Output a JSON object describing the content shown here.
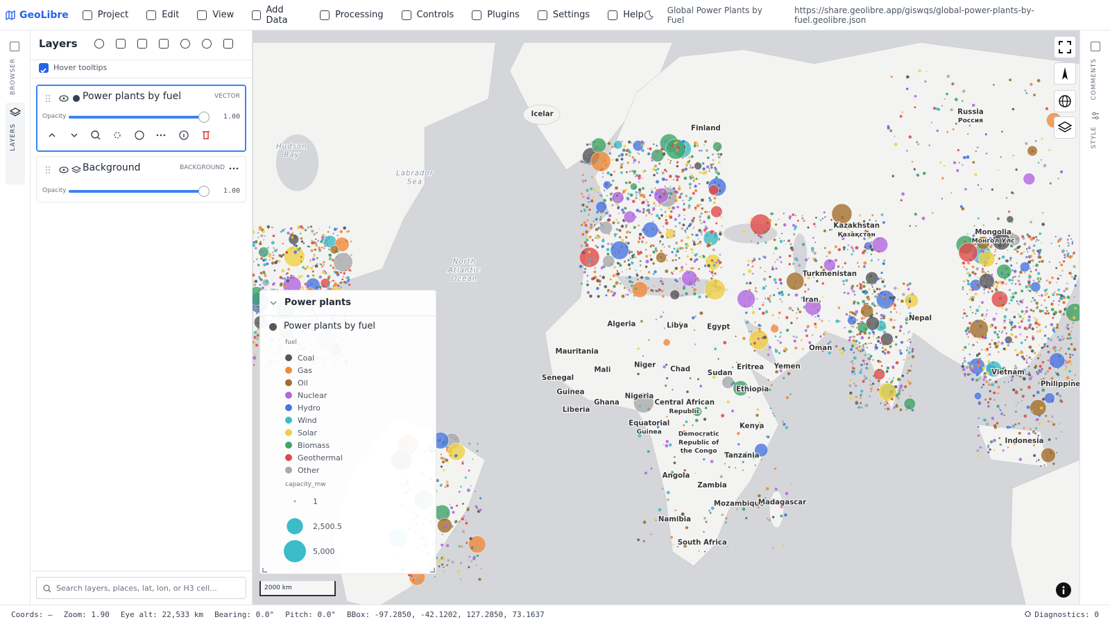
{
  "menubar": {
    "brand": "GeoLibre",
    "menus": [
      "Project",
      "Edit",
      "View",
      "Add Data",
      "Processing",
      "Controls",
      "Plugins",
      "Settings",
      "Help"
    ],
    "project_title": "Global Power Plants by Fuel",
    "url": "https://share.geolibre.app/giswqs/global-power-plants-by-fuel.geolibre.json"
  },
  "left_tabs": [
    "BROWSER",
    "LAYERS"
  ],
  "right_tabs": [
    "COMMENTS",
    "STYLE"
  ],
  "layers_panel": {
    "title": "Layers",
    "hover_tooltips": {
      "label": "Hover tooltips",
      "checked": true
    },
    "layers": [
      {
        "name": "Power plants by fuel",
        "kind": "VECTOR",
        "opacity_label": "Opacity",
        "opacity": {
          "value": 1,
          "label": "1.00"
        }
      },
      {
        "name": "Background",
        "kind": "BACKGROUND",
        "opacity_label": "Opacity",
        "opacity": {
          "value": 1,
          "label": "1.00"
        }
      }
    ],
    "search_placeholder": "Search layers, places, lat, lon, or H3 cell..."
  },
  "legend": {
    "title": "Power plants",
    "layer": "Power plants by fuel",
    "fuel_title": "fuel",
    "fuel": [
      {
        "name": "Coal",
        "color": "#55565b"
      },
      {
        "name": "Gas",
        "color": "#ef8a3c"
      },
      {
        "name": "Oil",
        "color": "#a26f2c"
      },
      {
        "name": "Nuclear",
        "color": "#b067e0"
      },
      {
        "name": "Hydro",
        "color": "#4a76e0"
      },
      {
        "name": "Wind",
        "color": "#3bbcc8"
      },
      {
        "name": "Solar",
        "color": "#f0cf45"
      },
      {
        "name": "Biomass",
        "color": "#3fa26a"
      },
      {
        "name": "Geothermal",
        "color": "#e04a4a"
      },
      {
        "name": "Other",
        "color": "#a8a9ad"
      }
    ],
    "size_title": "capacity_mw",
    "size_values": [
      1,
      2500.5,
      5000
    ],
    "size_labels": [
      "1",
      "2,500.5",
      "5,000"
    ],
    "size_color": "#3bbcc8"
  },
  "map": {
    "scale": "2000 km",
    "labels": [
      [
        "Hudson",
        "Bay"
      ],
      [
        "Labrador",
        "Sea"
      ],
      [
        "North",
        "Atlantic",
        "Ocean"
      ],
      [
        "Icelar"
      ],
      [
        "Finland"
      ],
      [
        "Russia",
        "Россия"
      ],
      [
        "Kazakhstan",
        "Қазақстан"
      ],
      [
        "Mongolia",
        "Монгол Улс"
      ],
      [
        "Turkmenistan"
      ],
      [
        "Iran"
      ],
      [
        "Algeria"
      ],
      [
        "Libya"
      ],
      [
        "Egypt"
      ],
      [
        "Mauritania"
      ],
      [
        "Mali"
      ],
      [
        "Niger"
      ],
      [
        "Chad"
      ],
      [
        "Sudan"
      ],
      [
        "Senegal"
      ],
      [
        "Guinea"
      ],
      [
        "Liberia"
      ],
      [
        "Ghana"
      ],
      [
        "Nigeria"
      ],
      [
        "Central African",
        "Republic"
      ],
      [
        "Equatorial",
        "Guinea"
      ],
      [
        "Eritrea"
      ],
      [
        "Yemen"
      ],
      [
        "Ethiopia"
      ],
      [
        "Kenya"
      ],
      [
        "Democratic",
        "Republic of",
        "the Congo"
      ],
      [
        "Tanzania"
      ],
      [
        "Angola"
      ],
      [
        "Zambia"
      ],
      [
        "Mozambique"
      ],
      [
        "Madagascar"
      ],
      [
        "Namibia"
      ],
      [
        "South Africa"
      ],
      [
        "Nepal"
      ],
      [
        "Oman"
      ],
      [
        "Indonesia"
      ],
      [
        "Philippine"
      ],
      [
        "Vietnam"
      ]
    ]
  },
  "status": {
    "coords": "Coords: —",
    "zoom": "Zoom: 1.90",
    "eye_alt": "Eye alt: 22,533 km",
    "bearing": "Bearing: 0.0°",
    "pitch": "Pitch: 0.0°",
    "bbox": "BBox: -97.2850, -42.1202, 127.2850, 73.1637",
    "diagnostics": "Diagnostics: 0"
  }
}
